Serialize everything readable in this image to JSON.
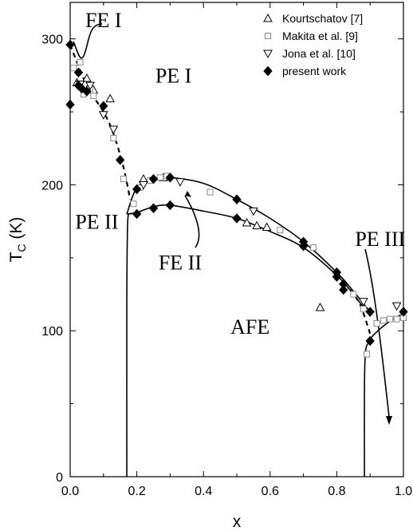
{
  "chart_data": {
    "type": "scatter",
    "xlabel": "x",
    "ylabel": "T",
    "ylabel_sub": "C",
    "ylabel_unit": " (K)",
    "xlim": [
      0.0,
      1.0
    ],
    "ylim": [
      0,
      325
    ],
    "xticks": [
      0.0,
      0.2,
      0.4,
      0.6,
      0.8,
      1.0
    ],
    "xtick_labels": [
      "0.0",
      "0.2",
      "0.4",
      "0.6",
      "0.8",
      "1.0"
    ],
    "yticks": [
      0,
      100,
      200,
      300
    ],
    "ytick_labels": [
      "0",
      "100",
      "200",
      "300"
    ],
    "grid": false,
    "legend_position": "top-right",
    "series": [
      {
        "name": "Kourtschatov [7]",
        "marker": "triangle-up",
        "points": [
          [
            0.02,
            270
          ],
          [
            0.05,
            273
          ],
          [
            0.07,
            265
          ],
          [
            0.12,
            259
          ],
          [
            0.22,
            204
          ],
          [
            0.28,
            205
          ],
          [
            0.53,
            174
          ],
          [
            0.56,
            172
          ],
          [
            0.59,
            171
          ],
          [
            0.75,
            116
          ]
        ]
      },
      {
        "name": "Makita et al. [9]",
        "marker": "square",
        "points": [
          [
            0.01,
            280
          ],
          [
            0.03,
            284
          ],
          [
            0.04,
            262
          ],
          [
            0.06,
            266
          ],
          [
            0.07,
            261
          ],
          [
            0.13,
            232
          ],
          [
            0.16,
            204
          ],
          [
            0.19,
            187
          ],
          [
            0.21,
            198
          ],
          [
            0.24,
            203
          ],
          [
            0.27,
            205
          ],
          [
            0.29,
            206
          ],
          [
            0.42,
            195
          ],
          [
            0.63,
            169
          ],
          [
            0.73,
            157
          ],
          [
            0.85,
            125
          ],
          [
            0.88,
            115
          ],
          [
            0.89,
            84
          ],
          [
            0.92,
            105
          ],
          [
            0.94,
            107
          ],
          [
            0.96,
            108
          ],
          [
            0.98,
            108
          ],
          [
            1.0,
            109
          ]
        ]
      },
      {
        "name": "Jona et al. [10]",
        "marker": "triangle-down",
        "points": [
          [
            0.03,
            269
          ],
          [
            0.06,
            268
          ],
          [
            0.1,
            248
          ],
          [
            0.13,
            238
          ],
          [
            0.22,
            200
          ],
          [
            0.33,
            202
          ],
          [
            0.55,
            182
          ],
          [
            0.88,
            120
          ],
          [
            0.98,
            117
          ]
        ]
      },
      {
        "name": "present work",
        "marker": "diamond",
        "points": [
          [
            0.0,
            296
          ],
          [
            0.0,
            255
          ],
          [
            0.025,
            277
          ],
          [
            0.025,
            268
          ],
          [
            0.035,
            266
          ],
          [
            0.05,
            264
          ],
          [
            0.1,
            254
          ],
          [
            0.15,
            217
          ],
          [
            0.2,
            197
          ],
          [
            0.2,
            180
          ],
          [
            0.25,
            204
          ],
          [
            0.25,
            184
          ],
          [
            0.3,
            205
          ],
          [
            0.3,
            186
          ],
          [
            0.5,
            190
          ],
          [
            0.5,
            177
          ],
          [
            0.7,
            161
          ],
          [
            0.7,
            158
          ],
          [
            0.8,
            140
          ],
          [
            0.8,
            137
          ],
          [
            0.82,
            132
          ],
          [
            0.82,
            128
          ],
          [
            0.9,
            113
          ],
          [
            0.9,
            93
          ],
          [
            1.0,
            113
          ]
        ]
      }
    ],
    "boundaries": [
      {
        "name": "upper-dome",
        "style": "solid",
        "points": [
          [
            0.17,
            180
          ],
          [
            0.2,
            198
          ],
          [
            0.25,
            204
          ],
          [
            0.3,
            205
          ],
          [
            0.4,
            201
          ],
          [
            0.5,
            190
          ],
          [
            0.6,
            177
          ],
          [
            0.7,
            161
          ],
          [
            0.8,
            140
          ],
          [
            0.85,
            127
          ],
          [
            0.9,
            113
          ]
        ]
      },
      {
        "name": "lower-dome",
        "style": "solid",
        "points": [
          [
            0.17,
            180
          ],
          [
            0.2,
            181
          ],
          [
            0.25,
            185
          ],
          [
            0.3,
            186
          ],
          [
            0.4,
            182
          ],
          [
            0.5,
            177
          ],
          [
            0.6,
            168
          ],
          [
            0.7,
            157
          ],
          [
            0.8,
            138
          ],
          [
            0.85,
            125
          ],
          [
            0.9,
            110
          ]
        ]
      },
      {
        "name": "left-afe-boundary",
        "style": "solid",
        "points": [
          [
            0.17,
            0
          ],
          [
            0.17,
            120
          ],
          [
            0.172,
            170
          ],
          [
            0.175,
            180
          ]
        ]
      },
      {
        "name": "right-afe-boundary",
        "style": "solid",
        "points": [
          [
            0.883,
            0
          ],
          [
            0.883,
            60
          ],
          [
            0.886,
            85
          ],
          [
            0.895,
            92
          ],
          [
            0.91,
            97
          ],
          [
            0.95,
            105
          ],
          [
            1.0,
            112
          ]
        ]
      },
      {
        "name": "fe1-pe1-boundary",
        "style": "dashed",
        "points": [
          [
            0.0,
            296
          ],
          [
            0.05,
            268
          ],
          [
            0.1,
            250
          ],
          [
            0.13,
            235
          ],
          [
            0.16,
            212
          ],
          [
            0.18,
            190
          ]
        ]
      },
      {
        "name": "afe-pe3-boundary",
        "style": "dashed",
        "points": [
          [
            0.84,
            128
          ],
          [
            0.87,
            118
          ],
          [
            0.9,
            98
          ]
        ]
      }
    ],
    "annotations": [
      {
        "text": "FE I",
        "x": 0.1,
        "y": 308
      },
      {
        "text": "PE I",
        "x": 0.31,
        "y": 270
      },
      {
        "text": "PE II",
        "x": 0.08,
        "y": 170
      },
      {
        "text": "FE II",
        "x": 0.33,
        "y": 142
      },
      {
        "text": "AFE",
        "x": 0.54,
        "y": 98
      },
      {
        "text": "PE III",
        "x": 0.93,
        "y": 158
      }
    ]
  }
}
